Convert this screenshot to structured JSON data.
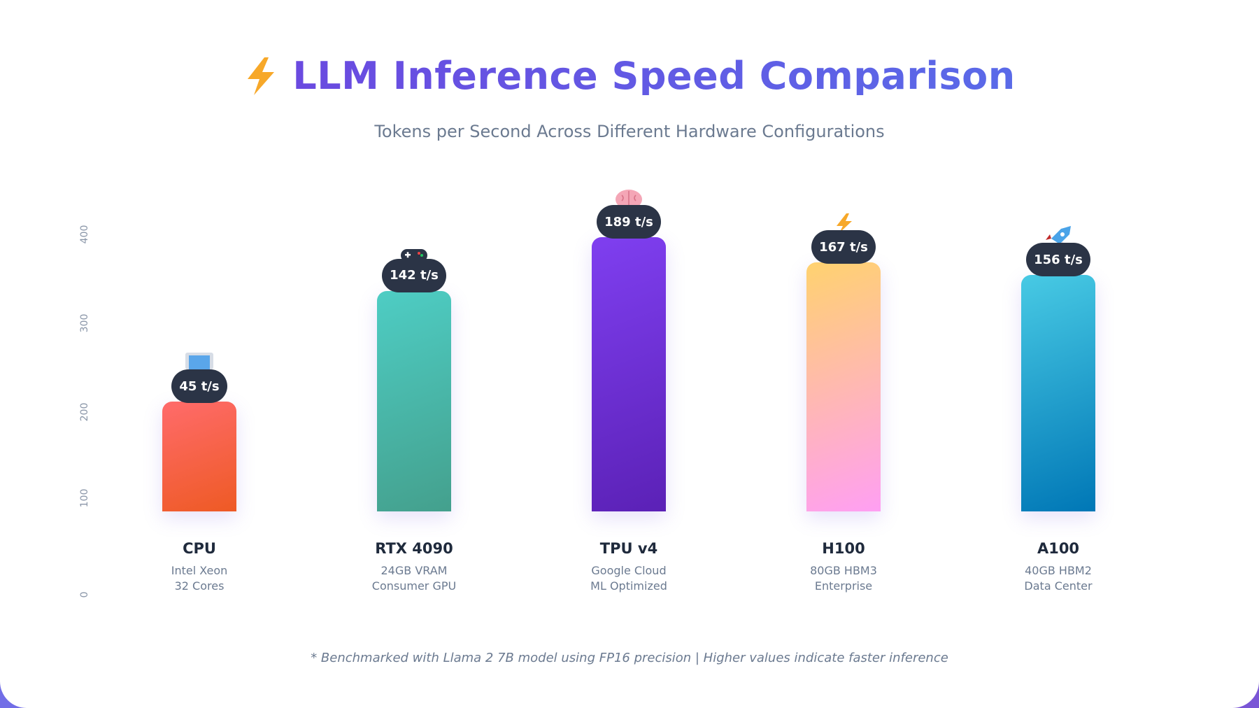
{
  "header": {
    "title": "LLM Inference Speed Comparison",
    "title_icon": "lightning-icon",
    "subtitle": "Tokens per Second Across Different Hardware Configurations"
  },
  "footnote": "* Benchmarked with Llama 2 7B model using FP16 precision | Higher values indicate faster inference",
  "chart_data": {
    "type": "bar",
    "title": "LLM Inference Speed Comparison",
    "subtitle": "Tokens per Second Across Different Hardware Configurations",
    "categories": [
      "CPU",
      "RTX 4090",
      "TPU v4",
      "H100",
      "A100"
    ],
    "descriptions": [
      [
        "Intel Xeon",
        "32 Cores"
      ],
      [
        "24GB VRAM",
        "Consumer GPU"
      ],
      [
        "Google Cloud",
        "ML Optimized"
      ],
      [
        "80GB HBM3",
        "Enterprise"
      ],
      [
        "40GB HBM2",
        "Data Center"
      ]
    ],
    "values": [
      45,
      142,
      189,
      167,
      156
    ],
    "value_labels": [
      "45 t/s",
      "142 t/s",
      "189 t/s",
      "167 t/s",
      "156 t/s"
    ],
    "icons": [
      "computer-icon",
      "gamepad-icon",
      "brain-icon",
      "lightning-icon",
      "rocket-icon"
    ],
    "colors": [
      [
        "#ff6b6b",
        "#ee5a24"
      ],
      [
        "#4ecdc4",
        "#44a08d"
      ],
      [
        "#7f3ff0",
        "#5b21b6"
      ],
      [
        "#ffd26f",
        "#ff9ff3"
      ],
      [
        "#48cae4",
        "#0077b6"
      ]
    ],
    "y_ticks": [
      0,
      100,
      200,
      300,
      400
    ],
    "xlabel": "",
    "ylabel": "",
    "grid": false,
    "legend": false
  }
}
